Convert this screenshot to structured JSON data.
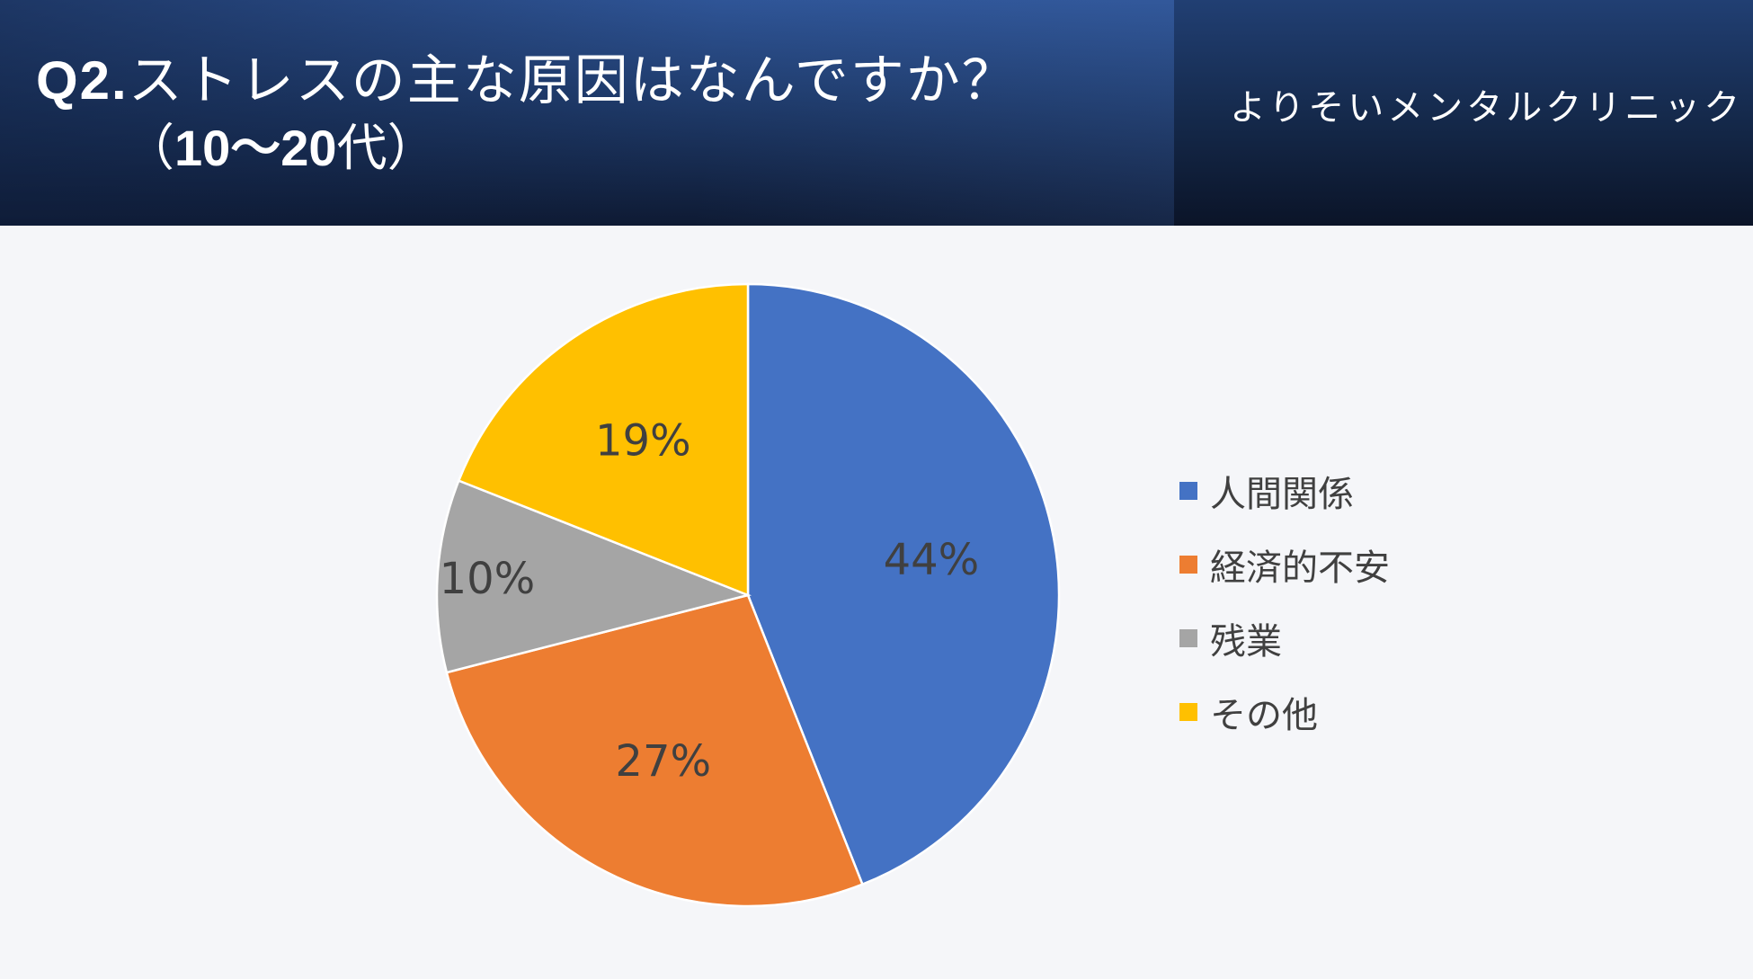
{
  "header": {
    "title_q": "Q2.",
    "title_text": "ストレスの主な原因はなんですか？",
    "subtitle_open": "（",
    "subtitle_age": "10～20",
    "subtitle_suffix": "代）",
    "clinic_name": "よりそいメンタルクリニック"
  },
  "chart_data": {
    "type": "pie",
    "categories": [
      "人間関係",
      "経済的不安",
      "残業",
      "その他"
    ],
    "values": [
      44,
      27,
      10,
      19
    ],
    "data_labels": [
      "44%",
      "27%",
      "10%",
      "19%"
    ],
    "colors": [
      "#4472c4",
      "#ed7d31",
      "#a5a5a5",
      "#ffc000"
    ],
    "legend_position": "right",
    "start": "top, clockwise"
  }
}
